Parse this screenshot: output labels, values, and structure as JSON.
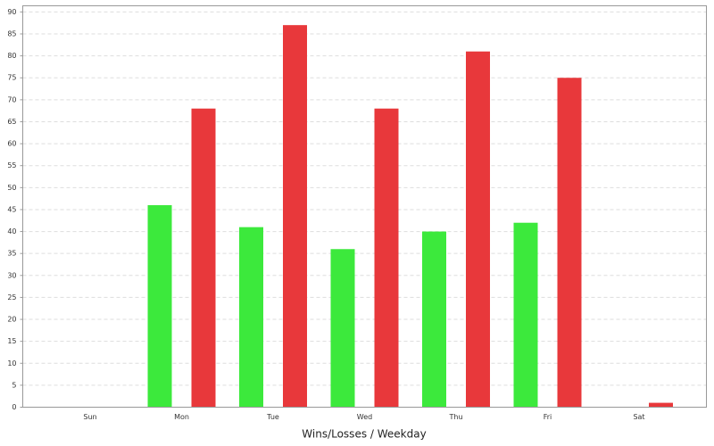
{
  "chart_data": {
    "type": "bar",
    "x_label": "Wins/Losses / Weekday",
    "categories": [
      "Sun",
      "Mon",
      "Tue",
      "Wed",
      "Thu",
      "Fri",
      "Sat"
    ],
    "series": [
      {
        "color": "#3ce93c",
        "values": [
          0,
          46,
          41,
          36,
          40,
          42,
          0
        ]
      },
      {
        "color": "#e8383b",
        "values": [
          0,
          68,
          87,
          68,
          81,
          75,
          1
        ]
      }
    ],
    "ylim": [
      0,
      91.4
    ],
    "yticks": [
      0,
      5,
      10,
      15,
      20,
      25,
      30,
      35,
      40,
      45,
      50,
      55,
      60,
      65,
      70,
      75,
      80,
      85,
      90
    ],
    "grid": true
  }
}
